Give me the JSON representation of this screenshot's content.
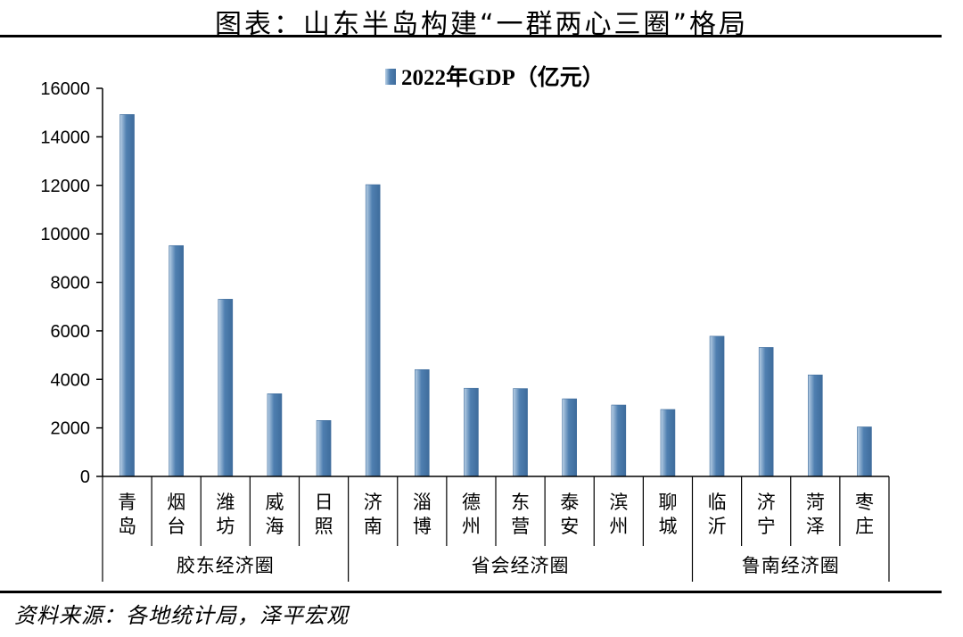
{
  "header": {
    "title": "图表：山东半岛构建“一群两心三圈”格局"
  },
  "footer": {
    "source": "资料来源：各地统计局，泽平宏观"
  },
  "colors": {
    "bar_light": "#b9d0e6",
    "bar_dark": "#4f7fb0",
    "bar_edge": "#3e6c9c"
  },
  "chart_data": {
    "type": "bar",
    "categories": [
      "青岛",
      "烟台",
      "潍坊",
      "威海",
      "日照",
      "济南",
      "淄博",
      "德州",
      "东营",
      "泰安",
      "滨州",
      "聊城",
      "临沂",
      "济宁",
      "菏泽",
      "枣庄"
    ],
    "category_lines": [
      [
        "青",
        "岛"
      ],
      [
        "烟",
        "台"
      ],
      [
        "潍",
        "坊"
      ],
      [
        "威",
        "海"
      ],
      [
        "日",
        "照"
      ],
      [
        "济",
        "南"
      ],
      [
        "淄",
        "博"
      ],
      [
        "德",
        "州"
      ],
      [
        "东",
        "营"
      ],
      [
        "泰",
        "安"
      ],
      [
        "滨",
        "州"
      ],
      [
        "聊",
        "城"
      ],
      [
        "临",
        "沂"
      ],
      [
        "济",
        "宁"
      ],
      [
        "菏",
        "泽"
      ],
      [
        "枣",
        "庄"
      ]
    ],
    "series": [
      {
        "name": "2022年GDP（亿元）",
        "values": [
          14921,
          9516,
          7306,
          3409,
          2306,
          12028,
          4403,
          3633,
          3620,
          3199,
          2942,
          2760,
          5779,
          5317,
          4184,
          2041
        ]
      }
    ],
    "groups": [
      {
        "label": "胶东经济圈",
        "start": 0,
        "end": 4
      },
      {
        "label": "省会经济圈",
        "start": 5,
        "end": 11
      },
      {
        "label": "鲁南经济圈",
        "start": 12,
        "end": 15
      }
    ],
    "ylim": [
      0,
      16000
    ],
    "yticks": [
      0,
      2000,
      4000,
      6000,
      8000,
      10000,
      12000,
      14000,
      16000
    ],
    "xlabel": "",
    "ylabel": "",
    "legend": "top-center",
    "grid": false
  }
}
